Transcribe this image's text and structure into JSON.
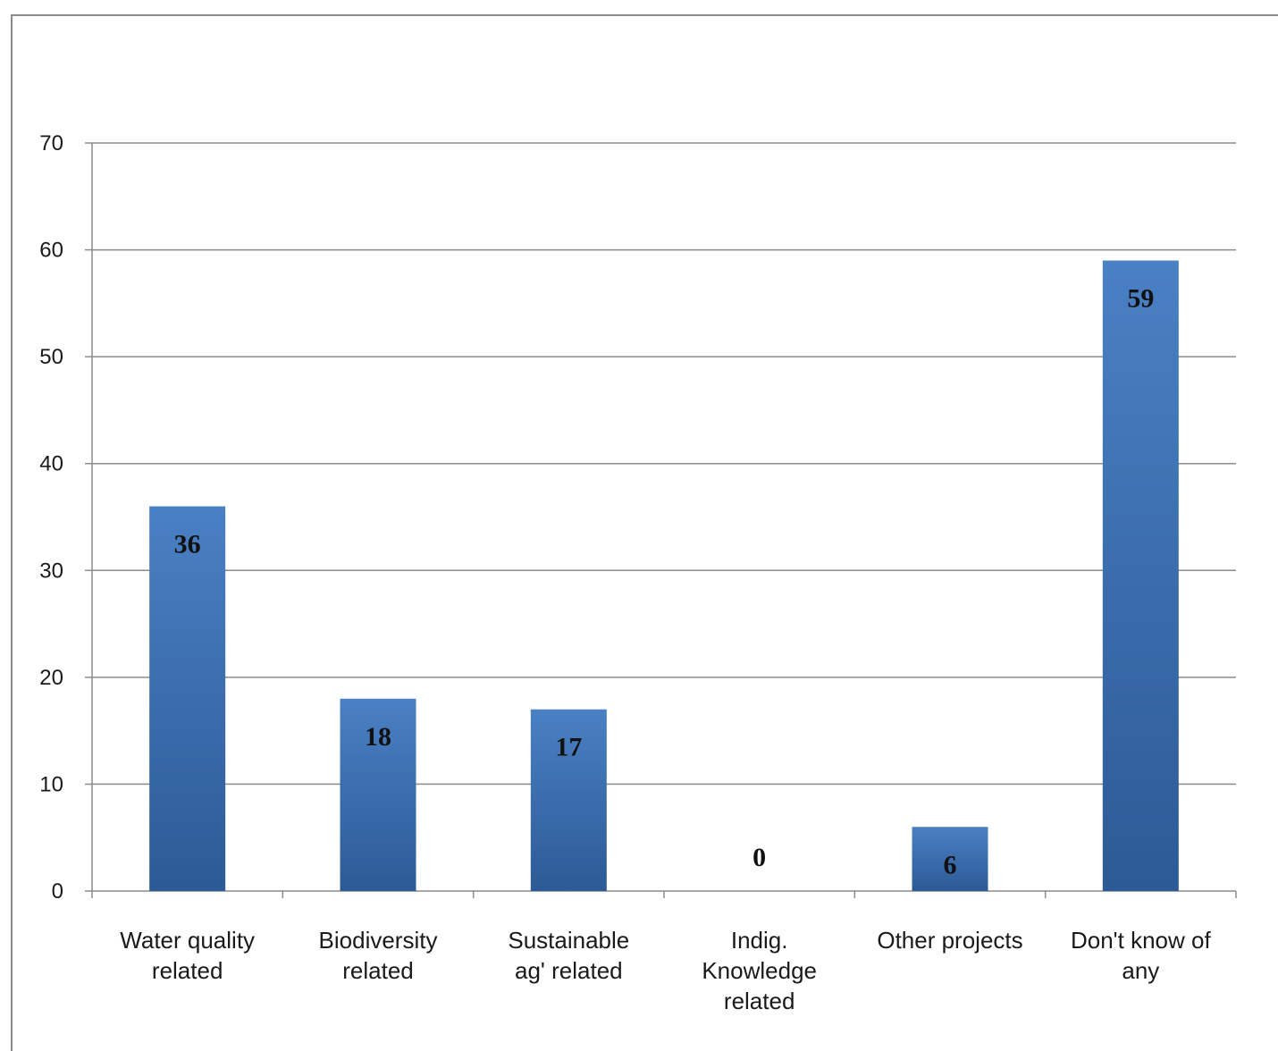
{
  "chart_data": {
    "type": "bar",
    "categories": [
      [
        "Water quality",
        "related"
      ],
      [
        "Biodiversity",
        "related"
      ],
      [
        "Sustainable",
        "ag' related"
      ],
      [
        "Indig.",
        "Knowledge",
        "related"
      ],
      [
        "Other projects"
      ],
      [
        "Don't know of",
        "any"
      ]
    ],
    "values": [
      36,
      18,
      17,
      0,
      6,
      59
    ],
    "ylim": [
      0,
      70
    ],
    "yticks": [
      0,
      10,
      20,
      30,
      40,
      50,
      60,
      70
    ],
    "grid": true,
    "data_labels": true,
    "bar_color_top": "#4a80c4",
    "bar_color_bottom": "#2c5a96"
  }
}
